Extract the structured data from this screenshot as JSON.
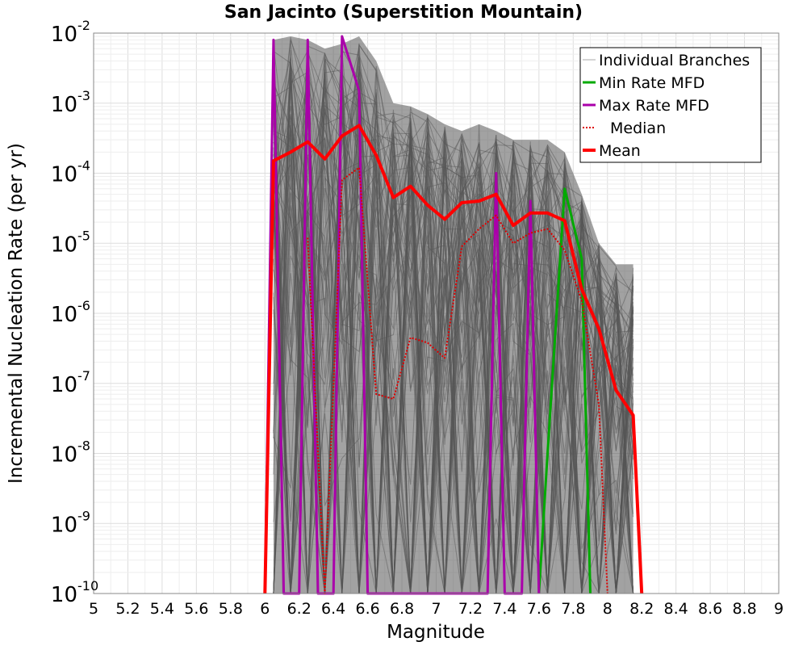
{
  "chart_data": {
    "type": "line",
    "title": "San Jacinto (Superstition Mountain)",
    "xlabel": "Magnitude",
    "ylabel": "Incremental Nucleation Rate (per yr)",
    "xlim": [
      5,
      9
    ],
    "ylim": [
      1e-10,
      0.01
    ],
    "yscale": "log",
    "grid": true,
    "legend_position": "top-right",
    "x_ticks": [
      "5",
      "5.2",
      "5.4",
      "5.6",
      "5.8",
      "6",
      "6.2",
      "6.4",
      "6.6",
      "6.8",
      "7",
      "7.2",
      "7.4",
      "7.6",
      "7.8",
      "8",
      "8.2",
      "8.4",
      "8.6",
      "8.8",
      "9"
    ],
    "y_ticks": [
      {
        "base": "10",
        "exp": "-10",
        "value": 1e-10
      },
      {
        "base": "10",
        "exp": "-9",
        "value": 1e-09
      },
      {
        "base": "10",
        "exp": "-8",
        "value": 1e-08
      },
      {
        "base": "10",
        "exp": "-7",
        "value": 1e-07
      },
      {
        "base": "10",
        "exp": "-6",
        "value": 1e-06
      },
      {
        "base": "10",
        "exp": "-5",
        "value": 1e-05
      },
      {
        "base": "10",
        "exp": "-4",
        "value": 0.0001
      },
      {
        "base": "10",
        "exp": "-3",
        "value": 0.001
      },
      {
        "base": "10",
        "exp": "-2",
        "value": 0.01
      }
    ],
    "series": [
      {
        "name": "Individual Branches",
        "color": "#555555",
        "style": "thin",
        "x": [
          6.05,
          6.15,
          6.25,
          6.35,
          6.45,
          6.55,
          6.65,
          6.75,
          6.85,
          6.95,
          7.05,
          7.15,
          7.25,
          7.35,
          7.45,
          7.55,
          7.65,
          7.75,
          7.85,
          7.95,
          8.05,
          8.15
        ],
        "upper": [
          0.008,
          0.009,
          0.008,
          0.006,
          0.007,
          0.009,
          0.004,
          0.001,
          0.0009,
          0.0007,
          0.0005,
          0.0004,
          0.0005,
          0.0004,
          0.0003,
          0.0003,
          0.0003,
          0.0002,
          5e-05,
          1e-05,
          5e-06,
          5e-06
        ],
        "lower": [
          1e-10,
          1e-10,
          1e-10,
          1e-10,
          1e-10,
          1e-10,
          1e-10,
          1e-10,
          1e-10,
          1e-10,
          1e-10,
          1e-10,
          1e-10,
          1e-10,
          1e-10,
          1e-10,
          1e-10,
          1e-10,
          1e-10,
          1e-10,
          1e-10,
          1e-10
        ]
      },
      {
        "name": "Min Rate MFD",
        "color": "#00aa00",
        "style": "solid",
        "points": [
          [
            7.6,
            1e-10
          ],
          [
            7.65,
            1e-08
          ],
          [
            7.75,
            6e-05
          ],
          [
            7.85,
            6e-06
          ],
          [
            7.9,
            1e-10
          ]
        ]
      },
      {
        "name": "Max Rate MFD",
        "color": "#aa00aa",
        "style": "solid",
        "points": [
          [
            6.0,
            1e-10
          ],
          [
            6.05,
            0.008
          ],
          [
            6.11,
            1e-10
          ],
          [
            6.2,
            1e-10
          ],
          [
            6.25,
            0.008
          ],
          [
            6.31,
            1e-10
          ],
          [
            6.4,
            1e-10
          ],
          [
            6.45,
            0.009
          ],
          [
            6.55,
            0.0015
          ],
          [
            6.6,
            1e-10
          ],
          [
            7.3,
            1e-10
          ],
          [
            7.35,
            0.0001
          ],
          [
            7.4,
            1e-10
          ],
          [
            7.5,
            1e-10
          ],
          [
            7.55,
            4e-05
          ],
          [
            7.6,
            1e-10
          ]
        ]
      },
      {
        "name": "Median",
        "color": "#dd0000",
        "style": "dotted",
        "points": [
          [
            6.25,
            1.2e-05
          ],
          [
            6.35,
            1e-10
          ],
          [
            6.45,
            8e-05
          ],
          [
            6.55,
            0.00012
          ],
          [
            6.65,
            7e-08
          ],
          [
            6.75,
            6e-08
          ],
          [
            6.85,
            4.5e-07
          ],
          [
            6.95,
            3.8e-07
          ],
          [
            7.05,
            2.3e-07
          ],
          [
            7.15,
            9e-06
          ],
          [
            7.25,
            1.6e-05
          ],
          [
            7.35,
            2.5e-05
          ],
          [
            7.45,
            1e-05
          ],
          [
            7.55,
            1.4e-05
          ],
          [
            7.65,
            1.6e-05
          ],
          [
            7.75,
            8e-06
          ],
          [
            7.85,
            1.5e-06
          ],
          [
            7.95,
            5e-08
          ],
          [
            8.0,
            1e-10
          ]
        ]
      },
      {
        "name": "Mean",
        "color": "#ff0000",
        "style": "thick",
        "points": [
          [
            6.0,
            1e-10
          ],
          [
            6.05,
            0.00015
          ],
          [
            6.15,
            0.0002
          ],
          [
            6.25,
            0.00028
          ],
          [
            6.35,
            0.00016
          ],
          [
            6.45,
            0.00034
          ],
          [
            6.55,
            0.00048
          ],
          [
            6.65,
            0.00018
          ],
          [
            6.75,
            4.5e-05
          ],
          [
            6.85,
            6.5e-05
          ],
          [
            6.95,
            3.5e-05
          ],
          [
            7.05,
            2.2e-05
          ],
          [
            7.15,
            3.8e-05
          ],
          [
            7.25,
            4e-05
          ],
          [
            7.35,
            5e-05
          ],
          [
            7.45,
            1.8e-05
          ],
          [
            7.55,
            2.7e-05
          ],
          [
            7.65,
            2.7e-05
          ],
          [
            7.75,
            2.1e-05
          ],
          [
            7.85,
            2.2e-06
          ],
          [
            7.95,
            6e-07
          ],
          [
            8.05,
            8e-08
          ],
          [
            8.15,
            3.5e-08
          ],
          [
            8.2,
            1e-10
          ]
        ]
      }
    ]
  }
}
